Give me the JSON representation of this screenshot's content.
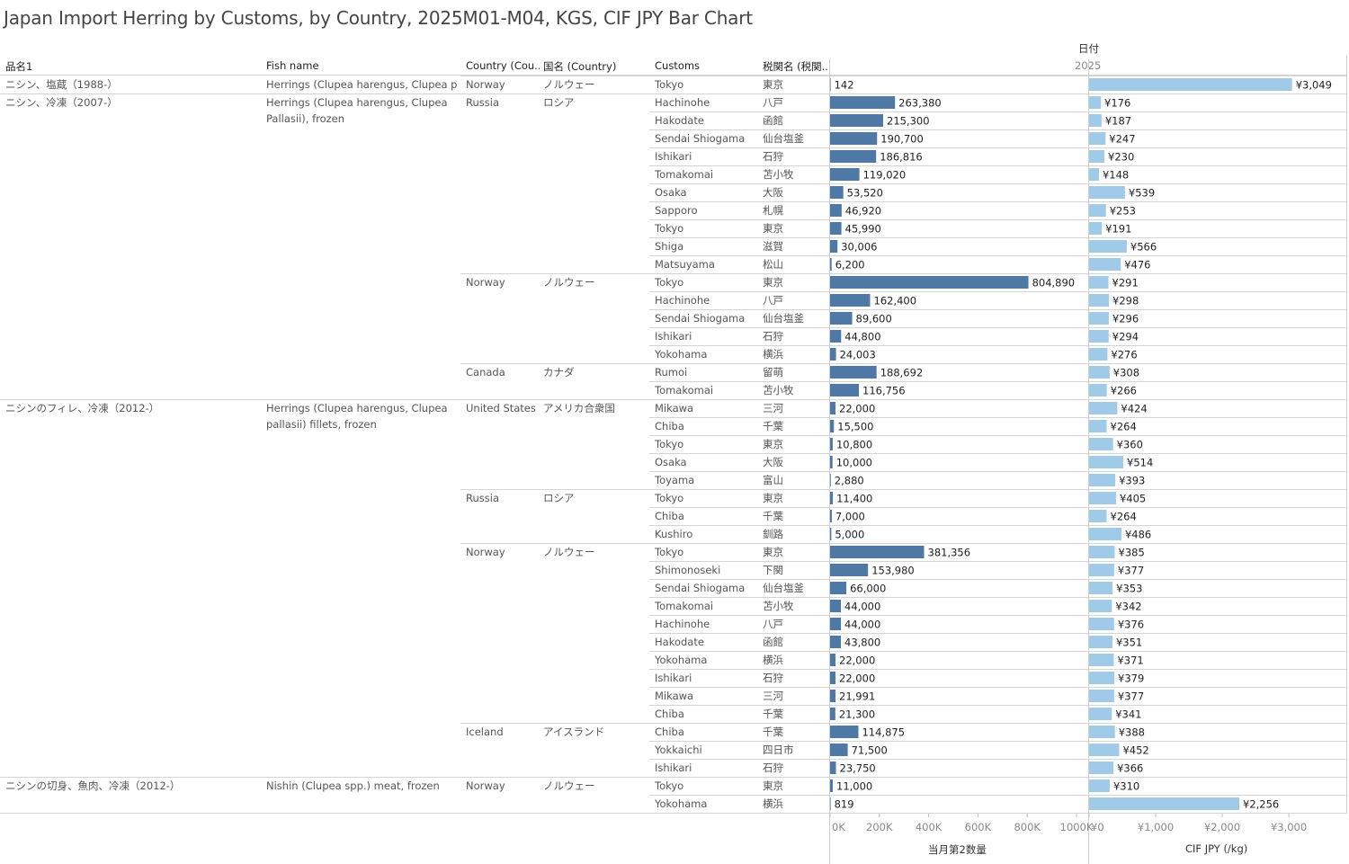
{
  "title": "Japan Import Herring by Customs, by Country, 2025M01-M04, KGS, CIF JPY Bar Chart",
  "headers": {
    "item": "品名1",
    "fish": "Fish name",
    "country": "Country (Cou..",
    "country_jp": "国名 (Country)",
    "customs": "Customs",
    "customs_jp": "税関名 (税関..",
    "date_label": "日付",
    "year": "2025"
  },
  "colors": {
    "qty_bar": "#4e79a7",
    "cif_bar": "#a0cbe8"
  },
  "groups": [
    {
      "item": "ニシン、塩蔵（1988-）",
      "fish": "Herrings (Clupea harengus, Clupea p..",
      "row_start": 0,
      "row_end": 0
    },
    {
      "item": "ニシン、冷凍（2007-）",
      "fish": "Herrings (Clupea harengus, Clupea Pallasii), frozen",
      "row_start": 1,
      "row_end": 17
    },
    {
      "item": "ニシンのフィレ、冷凍（2012-）",
      "fish": "Herrings (Clupea harengus, Clupea pallasii) fillets, frozen",
      "row_start": 18,
      "row_end": 38
    },
    {
      "item": "ニシンの切身、魚肉、冷凍（2012-）",
      "fish": "Nishin (Clupea spp.) meat, frozen",
      "row_start": 39,
      "row_end": 40
    }
  ],
  "country_groups": [
    {
      "country": "Norway",
      "country_jp": "ノルウェー",
      "row_start": 0,
      "row_end": 0
    },
    {
      "country": "Russia",
      "country_jp": "ロシア",
      "row_start": 1,
      "row_end": 10
    },
    {
      "country": "Norway",
      "country_jp": "ノルウェー",
      "row_start": 11,
      "row_end": 15
    },
    {
      "country": "Canada",
      "country_jp": "カナダ",
      "row_start": 16,
      "row_end": 17
    },
    {
      "country": "United States",
      "country_jp": "アメリカ合衆国",
      "row_start": 18,
      "row_end": 22
    },
    {
      "country": "Russia",
      "country_jp": "ロシア",
      "row_start": 23,
      "row_end": 25
    },
    {
      "country": "Norway",
      "country_jp": "ノルウェー",
      "row_start": 26,
      "row_end": 35
    },
    {
      "country": "Iceland",
      "country_jp": "アイスランド",
      "row_start": 36,
      "row_end": 38
    },
    {
      "country": "Norway",
      "country_jp": "ノルウェー",
      "row_start": 39,
      "row_end": 40
    }
  ],
  "chart_data": {
    "type": "bar",
    "categories": [
      "Tokyo",
      "Hachinohe",
      "Hakodate",
      "Sendai Shiogama",
      "Ishikari",
      "Tomakomai",
      "Osaka",
      "Sapporo",
      "Tokyo",
      "Shiga",
      "Matsuyama",
      "Tokyo",
      "Hachinohe",
      "Sendai Shiogama",
      "Ishikari",
      "Yokohama",
      "Rumoi",
      "Tomakomai",
      "Mikawa",
      "Chiba",
      "Tokyo",
      "Osaka",
      "Toyama",
      "Tokyo",
      "Chiba",
      "Kushiro",
      "Tokyo",
      "Shimonoseki",
      "Sendai Shiogama",
      "Tomakomai",
      "Hachinohe",
      "Hakodate",
      "Yokohama",
      "Ishikari",
      "Mikawa",
      "Chiba",
      "Chiba",
      "Yokkaichi",
      "Ishikari",
      "Tokyo",
      "Yokohama"
    ],
    "categories_jp": [
      "東京",
      "八戸",
      "函館",
      "仙台塩釜",
      "石狩",
      "苫小牧",
      "大阪",
      "札幌",
      "東京",
      "滋賀",
      "松山",
      "東京",
      "八戸",
      "仙台塩釜",
      "石狩",
      "横浜",
      "留萌",
      "苫小牧",
      "三河",
      "千葉",
      "東京",
      "大阪",
      "富山",
      "東京",
      "千葉",
      "釧路",
      "東京",
      "下関",
      "仙台塩釜",
      "苫小牧",
      "八戸",
      "函館",
      "横浜",
      "石狩",
      "三河",
      "千葉",
      "千葉",
      "四日市",
      "石狩",
      "東京",
      "横浜"
    ],
    "series": [
      {
        "name": "当月第2数量",
        "values": [
          142,
          263380,
          215300,
          190700,
          186816,
          119020,
          53520,
          46920,
          45990,
          30006,
          6200,
          804890,
          162400,
          89600,
          44800,
          24003,
          188692,
          116756,
          22000,
          15500,
          10800,
          10000,
          2880,
          11400,
          7000,
          5000,
          381356,
          153980,
          66000,
          44000,
          44000,
          43800,
          22000,
          22000,
          21991,
          21300,
          114875,
          71500,
          23750,
          11000,
          819
        ],
        "labels": [
          "142",
          "263,380",
          "215,300",
          "190,700",
          "186,816",
          "119,020",
          "53,520",
          "46,920",
          "45,990",
          "30,006",
          "6,200",
          "804,890",
          "162,400",
          "89,600",
          "44,800",
          "24,003",
          "188,692",
          "116,756",
          "22,000",
          "15,500",
          "10,800",
          "10,000",
          "2,880",
          "11,400",
          "7,000",
          "5,000",
          "381,356",
          "153,980",
          "66,000",
          "44,000",
          "44,000",
          "43,800",
          "22,000",
          "22,000",
          "21,991",
          "21,300",
          "114,875",
          "71,500",
          "23,750",
          "11,000",
          "819"
        ]
      },
      {
        "name": "CIF JPY (/kg)",
        "values": [
          3049,
          176,
          187,
          247,
          230,
          148,
          539,
          253,
          191,
          566,
          476,
          291,
          298,
          296,
          294,
          276,
          308,
          266,
          424,
          264,
          360,
          514,
          393,
          405,
          264,
          486,
          385,
          377,
          353,
          342,
          376,
          351,
          371,
          379,
          377,
          341,
          388,
          452,
          366,
          310,
          2256
        ],
        "labels": [
          "¥3,049",
          "¥176",
          "¥187",
          "¥247",
          "¥230",
          "¥148",
          "¥539",
          "¥253",
          "¥191",
          "¥566",
          "¥476",
          "¥291",
          "¥298",
          "¥296",
          "¥294",
          "¥276",
          "¥308",
          "¥266",
          "¥424",
          "¥264",
          "¥360",
          "¥514",
          "¥393",
          "¥405",
          "¥264",
          "¥486",
          "¥385",
          "¥377",
          "¥353",
          "¥342",
          "¥376",
          "¥351",
          "¥371",
          "¥379",
          "¥377",
          "¥341",
          "¥388",
          "¥452",
          "¥366",
          "¥310",
          "¥2,256"
        ]
      }
    ],
    "x_axes": [
      {
        "label": "当月第2数量",
        "range": [
          0,
          1040000
        ],
        "ticks": [
          0,
          200000,
          400000,
          600000,
          800000,
          1000000
        ],
        "tick_labels": [
          "0K",
          "200K",
          "400K",
          "600K",
          "800K",
          "1000K"
        ]
      },
      {
        "label": "CIF JPY (/kg)",
        "range": [
          0,
          3850
        ],
        "ticks": [
          0,
          1000,
          2000,
          3000
        ],
        "tick_labels": [
          "¥0",
          "¥1,000",
          "¥2,000",
          "¥3,000"
        ]
      }
    ],
    "grid": false
  }
}
